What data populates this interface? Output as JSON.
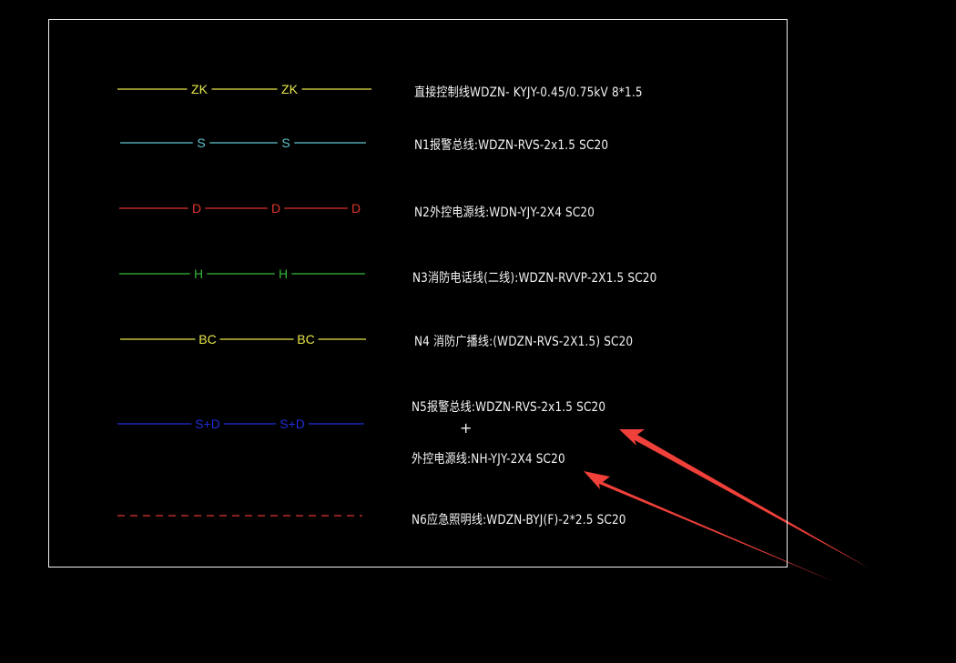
{
  "colors": {
    "background": "#000000",
    "frame": "#f2f2f2",
    "text": "#f4f4f4",
    "zk": "#e8e84a",
    "s": "#5fc7cf",
    "d": "#e0332f",
    "h": "#33b83a",
    "bc": "#e8e84a",
    "sd": "#1f2fd6",
    "emergency": "#e0332f",
    "arrow": "#f0403a"
  },
  "legend": {
    "rows": [
      {
        "symbol": "ZK",
        "color_key": "zk",
        "style": "labeled",
        "label_count": 2,
        "description": "直接控制线WDZN- KYJY-0.45/0.75kV 8*1.5"
      },
      {
        "symbol": "S",
        "color_key": "s",
        "style": "labeled",
        "label_count": 2,
        "description": "N1报警总线:WDZN-RVS-2x1.5   SC20"
      },
      {
        "symbol": "D",
        "color_key": "d",
        "style": "labeled",
        "label_count": 3,
        "description": "N2外控电源线:WDN-YJY-2X4  SC20"
      },
      {
        "symbol": "H",
        "color_key": "h",
        "style": "labeled",
        "label_count": 2,
        "description": "N3消防电话线(二线):WDZN-RVVP-2X1.5   SC20"
      },
      {
        "symbol": "BC",
        "color_key": "bc",
        "style": "labeled",
        "label_count": 2,
        "description": "N4 消防广播线:(WDZN-RVS-2X1.5)  SC20"
      },
      {
        "symbol": "S+D",
        "color_key": "sd",
        "style": "labeled",
        "label_count": 2,
        "description": "N5报警总线:WDZN-RVS-2x1.5   SC20",
        "plus": "+",
        "description_2": "外控电源线:NH-YJY-2X4  SC20"
      },
      {
        "symbol": "",
        "color_key": "emergency",
        "style": "dashed",
        "label_count": 0,
        "description": "N6应急照明线:WDZN-BYJ(F)-2*2.5  SC20"
      }
    ]
  },
  "annotations": {
    "arrow_count": 2,
    "arrow_icon": "red-pointer-arrow-icon"
  }
}
